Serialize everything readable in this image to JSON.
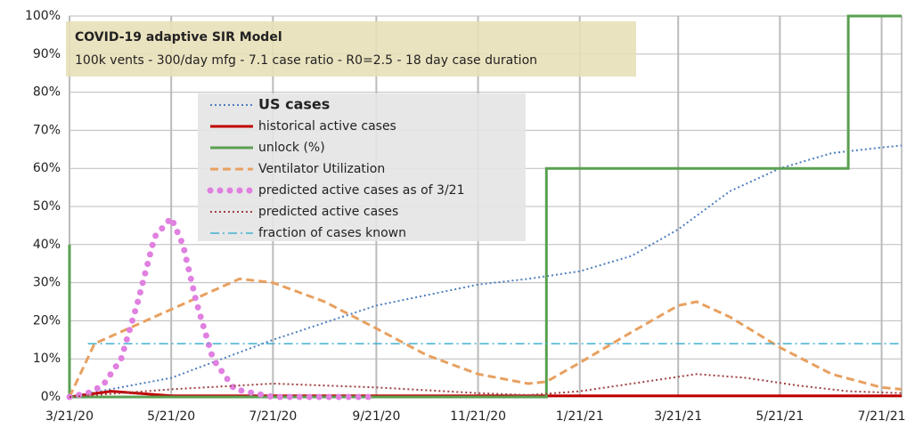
{
  "chart_data": {
    "type": "line",
    "title": "COVID-19 adaptive SIR Model",
    "subtitle": "100k vents - 300/day mfg - 7.1 case ratio - R0=2.5 - 18 day case duration",
    "xlim": [
      "3/21/20",
      "8/2/21"
    ],
    "xticks": [
      "3/21/20",
      "5/21/20",
      "7/21/20",
      "9/21/20",
      "11/21/20",
      "1/21/21",
      "3/21/21",
      "5/21/21",
      "7/21/21"
    ],
    "ylim": [
      0,
      100
    ],
    "yticks": [
      {
        "value": 0,
        "label": "0%"
      },
      {
        "value": 10,
        "label": "10%"
      },
      {
        "value": 20,
        "label": "20%"
      },
      {
        "value": 30,
        "label": "30%"
      },
      {
        "value": 40,
        "label": "40%"
      },
      {
        "value": 50,
        "label": "50%"
      },
      {
        "value": 60,
        "label": "60%"
      },
      {
        "value": 70,
        "label": "70%"
      },
      {
        "value": 80,
        "label": "80%"
      },
      {
        "value": 90,
        "label": "90%"
      },
      {
        "value": 100,
        "label": "100%"
      }
    ],
    "grid": true,
    "legend": "upper left",
    "series": [
      {
        "name": "US cases",
        "color": "#4f7fbf",
        "style": "dotted",
        "x": [
          "3/21/20",
          "5/21/20",
          "7/21/20",
          "9/21/20",
          "11/21/20",
          "12/21/20",
          "1/21/21",
          "2/21/21",
          "3/21/21",
          "4/21/21",
          "5/21/21",
          "6/21/21",
          "7/21/21",
          "8/2/21"
        ],
        "values": [
          0,
          5,
          15,
          24,
          29.5,
          31,
          33,
          37,
          44,
          54,
          60,
          64,
          65.5,
          66
        ]
      },
      {
        "name": "historical active cases",
        "color": "#c00000",
        "style": "solid",
        "x": [
          "3/21/20",
          "4/15/20",
          "5/21/20",
          "8/2/21"
        ],
        "values": [
          0,
          1.5,
          0.3,
          0.3
        ]
      },
      {
        "name": "unlock (%)",
        "color": "#5aa050",
        "style": "solid",
        "x": [
          "3/21/20",
          "3/21/20",
          "1/1/21",
          "1/1/21",
          "7/1/21",
          "7/1/21",
          "8/2/21"
        ],
        "values": [
          40,
          0,
          0,
          60,
          60,
          100,
          100
        ]
      },
      {
        "name": "Ventilator Utilization",
        "color": "#e8a060",
        "style": "dashed",
        "x": [
          "3/21/20",
          "4/5/20",
          "5/21/20",
          "7/1/20",
          "7/21/20",
          "8/21/20",
          "9/21/20",
          "10/21/20",
          "11/21/20",
          "12/21/20",
          "1/1/21",
          "1/21/21",
          "2/21/21",
          "3/21/21",
          "4/1/21",
          "4/21/21",
          "5/21/21",
          "6/21/21",
          "7/21/21",
          "8/2/21"
        ],
        "values": [
          0,
          14,
          23,
          31,
          30,
          25,
          18,
          11,
          6,
          3.5,
          4,
          9,
          17,
          24,
          25,
          21,
          13,
          6,
          2.5,
          2
        ]
      },
      {
        "name": "predicted active cases as of 3/21",
        "color": "#e080e0",
        "style": "bigdots",
        "x": [
          "3/21/20",
          "4/1/20",
          "4/10/20",
          "4/21/20",
          "5/1/20",
          "5/11/20",
          "5/21/20",
          "5/28/20",
          "6/5/20",
          "6/15/20",
          "6/28/20",
          "7/21/20",
          "9/21/20"
        ],
        "values": [
          0,
          1,
          3,
          10,
          25,
          42,
          47,
          40,
          25,
          10,
          2,
          0,
          0
        ]
      },
      {
        "name": "predicted active cases",
        "color": "#a04040",
        "style": "dotted",
        "x": [
          "3/21/20",
          "5/21/20",
          "7/21/20",
          "9/21/20",
          "11/21/20",
          "12/21/20",
          "1/21/21",
          "3/1/21",
          "4/1/21",
          "5/1/21",
          "6/1/21",
          "7/1/21",
          "8/2/21"
        ],
        "values": [
          0,
          2,
          3.5,
          2.5,
          1,
          0.5,
          1.5,
          4,
          6,
          5,
          3,
          1.5,
          1
        ]
      },
      {
        "name": "fraction of cases known",
        "color": "#40b0d0",
        "style": "dashdot",
        "x": [
          "4/1/20",
          "8/2/21"
        ],
        "values": [
          14,
          14
        ]
      }
    ]
  }
}
